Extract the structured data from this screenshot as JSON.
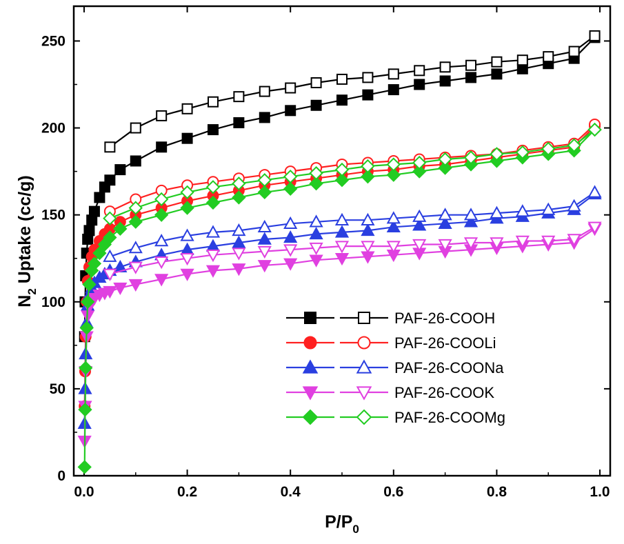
{
  "chart_data": {
    "type": "line",
    "title": "",
    "xlabel": "P/P",
    "xlabel_sub": "0",
    "ylabel_pre": "N",
    "ylabel_sub": "2",
    "ylabel_post": " Uptake (cc/g)",
    "xlim": [
      -0.02,
      1.02
    ],
    "ylim": [
      0,
      270
    ],
    "xticks": [
      0.0,
      0.2,
      0.4,
      0.6,
      0.8,
      1.0
    ],
    "xtick_labels": [
      "0.0",
      "0.2",
      "0.4",
      "0.6",
      "0.8",
      "1.0"
    ],
    "yticks": [
      0,
      50,
      100,
      150,
      200,
      250
    ],
    "ytick_labels": [
      "0",
      "50",
      "100",
      "150",
      "200",
      "250"
    ],
    "grid": false,
    "legend_position": "lower-right",
    "series": [
      {
        "name": "PAF-26-COOH",
        "color": "#000000",
        "marker": "square",
        "adsorption": [
          [
            0.001,
            80
          ],
          [
            0.002,
            100
          ],
          [
            0.003,
            115
          ],
          [
            0.005,
            128
          ],
          [
            0.007,
            136
          ],
          [
            0.01,
            141
          ],
          [
            0.015,
            147
          ],
          [
            0.02,
            152
          ],
          [
            0.03,
            160
          ],
          [
            0.04,
            166
          ],
          [
            0.05,
            170
          ],
          [
            0.07,
            176
          ],
          [
            0.1,
            181
          ],
          [
            0.15,
            189
          ],
          [
            0.2,
            194
          ],
          [
            0.25,
            199
          ],
          [
            0.3,
            203
          ],
          [
            0.35,
            206
          ],
          [
            0.4,
            210
          ],
          [
            0.45,
            213
          ],
          [
            0.5,
            216
          ],
          [
            0.55,
            219
          ],
          [
            0.6,
            222
          ],
          [
            0.65,
            225
          ],
          [
            0.7,
            227
          ],
          [
            0.75,
            229
          ],
          [
            0.8,
            231
          ],
          [
            0.85,
            234
          ],
          [
            0.9,
            237
          ],
          [
            0.95,
            240
          ],
          [
            0.99,
            252
          ]
        ],
        "desorption": [
          [
            0.99,
            253
          ],
          [
            0.95,
            244
          ],
          [
            0.9,
            241
          ],
          [
            0.85,
            239
          ],
          [
            0.8,
            238
          ],
          [
            0.75,
            236
          ],
          [
            0.7,
            235
          ],
          [
            0.65,
            233
          ],
          [
            0.6,
            231
          ],
          [
            0.55,
            229
          ],
          [
            0.5,
            228
          ],
          [
            0.45,
            226
          ],
          [
            0.4,
            223
          ],
          [
            0.35,
            221
          ],
          [
            0.3,
            218
          ],
          [
            0.25,
            215
          ],
          [
            0.2,
            211
          ],
          [
            0.15,
            207
          ],
          [
            0.1,
            200
          ],
          [
            0.05,
            189
          ]
        ]
      },
      {
        "name": "PAF-26-COOLi",
        "color": "#ff2020",
        "marker": "circle",
        "adsorption": [
          [
            0.001,
            40
          ],
          [
            0.002,
            60
          ],
          [
            0.003,
            80
          ],
          [
            0.005,
            100
          ],
          [
            0.007,
            112
          ],
          [
            0.01,
            120
          ],
          [
            0.015,
            126
          ],
          [
            0.02,
            130
          ],
          [
            0.03,
            135
          ],
          [
            0.04,
            139
          ],
          [
            0.05,
            142
          ],
          [
            0.07,
            146
          ],
          [
            0.1,
            150
          ],
          [
            0.15,
            154
          ],
          [
            0.2,
            158
          ],
          [
            0.25,
            161
          ],
          [
            0.3,
            164
          ],
          [
            0.35,
            167
          ],
          [
            0.4,
            169
          ],
          [
            0.45,
            171
          ],
          [
            0.5,
            173
          ],
          [
            0.55,
            175
          ],
          [
            0.6,
            176
          ],
          [
            0.65,
            178
          ],
          [
            0.7,
            179
          ],
          [
            0.75,
            181
          ],
          [
            0.8,
            183
          ],
          [
            0.85,
            185
          ],
          [
            0.9,
            187
          ],
          [
            0.95,
            189
          ],
          [
            0.99,
            201
          ]
        ],
        "desorption": [
          [
            0.99,
            202
          ],
          [
            0.95,
            191
          ],
          [
            0.9,
            189
          ],
          [
            0.85,
            187
          ],
          [
            0.8,
            185
          ],
          [
            0.75,
            184
          ],
          [
            0.7,
            183
          ],
          [
            0.65,
            182
          ],
          [
            0.6,
            181
          ],
          [
            0.55,
            180
          ],
          [
            0.5,
            179
          ],
          [
            0.45,
            177
          ],
          [
            0.4,
            175
          ],
          [
            0.35,
            173
          ],
          [
            0.3,
            171
          ],
          [
            0.25,
            169
          ],
          [
            0.2,
            167
          ],
          [
            0.15,
            164
          ],
          [
            0.1,
            159
          ],
          [
            0.05,
            152
          ]
        ]
      },
      {
        "name": "PAF-26-COONa",
        "color": "#2a3fe0",
        "marker": "triangle-up",
        "adsorption": [
          [
            0.001,
            30
          ],
          [
            0.002,
            50
          ],
          [
            0.003,
            70
          ],
          [
            0.005,
            88
          ],
          [
            0.007,
            98
          ],
          [
            0.01,
            104
          ],
          [
            0.015,
            108
          ],
          [
            0.02,
            111
          ],
          [
            0.03,
            114
          ],
          [
            0.04,
            116
          ],
          [
            0.05,
            118
          ],
          [
            0.07,
            120
          ],
          [
            0.1,
            123
          ],
          [
            0.15,
            127
          ],
          [
            0.2,
            130
          ],
          [
            0.25,
            132
          ],
          [
            0.3,
            134
          ],
          [
            0.35,
            136
          ],
          [
            0.4,
            137
          ],
          [
            0.45,
            139
          ],
          [
            0.5,
            140
          ],
          [
            0.55,
            141
          ],
          [
            0.6,
            143
          ],
          [
            0.65,
            144
          ],
          [
            0.7,
            145
          ],
          [
            0.75,
            146
          ],
          [
            0.8,
            148
          ],
          [
            0.85,
            149
          ],
          [
            0.9,
            151
          ],
          [
            0.95,
            153
          ],
          [
            0.99,
            162
          ]
        ],
        "desorption": [
          [
            0.99,
            163
          ],
          [
            0.95,
            155
          ],
          [
            0.9,
            153
          ],
          [
            0.85,
            152
          ],
          [
            0.8,
            151
          ],
          [
            0.75,
            150
          ],
          [
            0.7,
            150
          ],
          [
            0.65,
            149
          ],
          [
            0.6,
            148
          ],
          [
            0.55,
            147
          ],
          [
            0.5,
            147
          ],
          [
            0.45,
            146
          ],
          [
            0.4,
            145
          ],
          [
            0.35,
            143
          ],
          [
            0.3,
            141
          ],
          [
            0.25,
            140
          ],
          [
            0.2,
            138
          ],
          [
            0.15,
            135
          ],
          [
            0.1,
            131
          ],
          [
            0.05,
            126
          ]
        ]
      },
      {
        "name": "PAF-26-COOK",
        "color": "#e040e0",
        "marker": "triangle-down",
        "adsorption": [
          [
            0.001,
            20
          ],
          [
            0.002,
            40
          ],
          [
            0.003,
            60
          ],
          [
            0.005,
            80
          ],
          [
            0.007,
            92
          ],
          [
            0.01,
            97
          ],
          [
            0.015,
            100
          ],
          [
            0.02,
            102
          ],
          [
            0.03,
            104
          ],
          [
            0.04,
            105
          ],
          [
            0.05,
            106
          ],
          [
            0.07,
            108
          ],
          [
            0.1,
            110
          ],
          [
            0.15,
            113
          ],
          [
            0.2,
            116
          ],
          [
            0.25,
            118
          ],
          [
            0.3,
            119
          ],
          [
            0.35,
            121
          ],
          [
            0.4,
            122
          ],
          [
            0.45,
            124
          ],
          [
            0.5,
            125
          ],
          [
            0.55,
            126
          ],
          [
            0.6,
            127
          ],
          [
            0.65,
            128
          ],
          [
            0.7,
            129
          ],
          [
            0.75,
            130
          ],
          [
            0.8,
            131
          ],
          [
            0.85,
            132
          ],
          [
            0.9,
            133
          ],
          [
            0.95,
            134
          ],
          [
            0.99,
            142
          ]
        ],
        "desorption": [
          [
            0.99,
            143
          ],
          [
            0.95,
            136
          ],
          [
            0.9,
            135
          ],
          [
            0.85,
            135
          ],
          [
            0.8,
            134
          ],
          [
            0.75,
            134
          ],
          [
            0.7,
            133
          ],
          [
            0.65,
            133
          ],
          [
            0.6,
            132
          ],
          [
            0.55,
            132
          ],
          [
            0.5,
            132
          ],
          [
            0.45,
            131
          ],
          [
            0.4,
            130
          ],
          [
            0.35,
            129
          ],
          [
            0.3,
            128
          ],
          [
            0.25,
            127
          ],
          [
            0.2,
            125
          ],
          [
            0.15,
            123
          ],
          [
            0.1,
            120
          ],
          [
            0.05,
            116
          ]
        ]
      },
      {
        "name": "PAF-26-COOMg",
        "color": "#22cc22",
        "marker": "diamond",
        "adsorption": [
          [
            0.001,
            5
          ],
          [
            0.002,
            38
          ],
          [
            0.003,
            62
          ],
          [
            0.005,
            85
          ],
          [
            0.007,
            100
          ],
          [
            0.01,
            110
          ],
          [
            0.015,
            118
          ],
          [
            0.02,
            122
          ],
          [
            0.03,
            128
          ],
          [
            0.04,
            133
          ],
          [
            0.05,
            137
          ],
          [
            0.07,
            142
          ],
          [
            0.1,
            146
          ],
          [
            0.15,
            150
          ],
          [
            0.2,
            154
          ],
          [
            0.25,
            157
          ],
          [
            0.3,
            160
          ],
          [
            0.35,
            163
          ],
          [
            0.4,
            165
          ],
          [
            0.45,
            168
          ],
          [
            0.5,
            170
          ],
          [
            0.55,
            172
          ],
          [
            0.6,
            173
          ],
          [
            0.65,
            175
          ],
          [
            0.7,
            177
          ],
          [
            0.75,
            179
          ],
          [
            0.8,
            181
          ],
          [
            0.85,
            183
          ],
          [
            0.9,
            185
          ],
          [
            0.95,
            187
          ],
          [
            0.99,
            199
          ]
        ],
        "desorption": [
          [
            0.99,
            199
          ],
          [
            0.95,
            190
          ],
          [
            0.9,
            188
          ],
          [
            0.85,
            186
          ],
          [
            0.8,
            185
          ],
          [
            0.75,
            183
          ],
          [
            0.7,
            182
          ],
          [
            0.65,
            180
          ],
          [
            0.6,
            179
          ],
          [
            0.55,
            178
          ],
          [
            0.5,
            176
          ],
          [
            0.45,
            174
          ],
          [
            0.4,
            172
          ],
          [
            0.35,
            170
          ],
          [
            0.3,
            168
          ],
          [
            0.25,
            166
          ],
          [
            0.2,
            163
          ],
          [
            0.15,
            159
          ],
          [
            0.1,
            154
          ],
          [
            0.05,
            148
          ]
        ]
      }
    ]
  }
}
